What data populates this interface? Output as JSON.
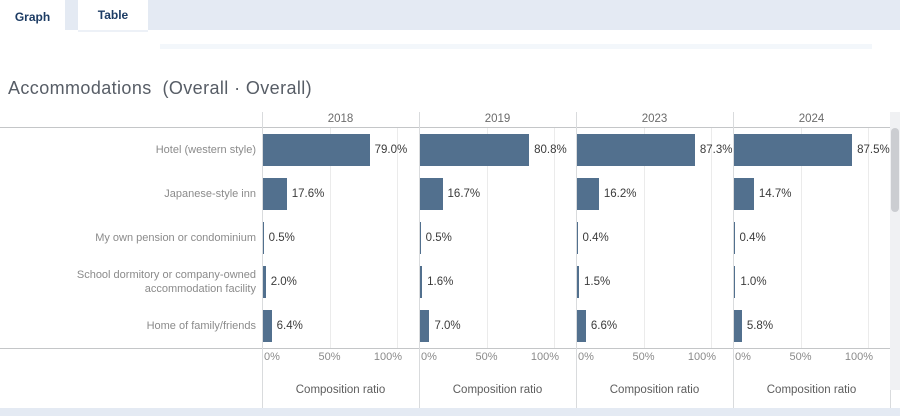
{
  "tabs": [
    {
      "label": "Graph",
      "active": true
    },
    {
      "label": "Table",
      "active": false
    }
  ],
  "title": "Accommodations  (Overall · Overall)",
  "chart_data": {
    "type": "bar",
    "orientation": "horizontal",
    "title": "Accommodations  (Overall · Overall)",
    "categories": [
      "Hotel (western style)",
      "Japanese-style inn",
      "My own pension or condominium",
      "School dormitory or company-owned accommodation facility",
      "Home of family/friends"
    ],
    "series": [
      {
        "name": "2018",
        "values": [
          79.0,
          17.6,
          0.5,
          2.0,
          6.4
        ]
      },
      {
        "name": "2019",
        "values": [
          80.8,
          16.7,
          0.5,
          1.6,
          7.0
        ]
      },
      {
        "name": "2023",
        "values": [
          87.3,
          16.2,
          0.4,
          1.5,
          6.6
        ]
      },
      {
        "name": "2024",
        "values": [
          87.5,
          14.7,
          0.4,
          1.0,
          5.8
        ]
      }
    ],
    "value_suffix": "%",
    "xlabel": "Composition ratio",
    "x_ticks": [
      "0%",
      "50%",
      "100%"
    ],
    "xlim": [
      0,
      100
    ],
    "grid": "vertical at 50% and 100%",
    "legend": "none, panels split by year",
    "bar_color": "#52708e"
  },
  "colors": {
    "bar": "#52708e",
    "tabbar_bg": "#e4eaf3",
    "tab_text": "#1d3c64",
    "bottom_strip": "#e4eaf3"
  },
  "scrollbar": {
    "side": "right"
  }
}
